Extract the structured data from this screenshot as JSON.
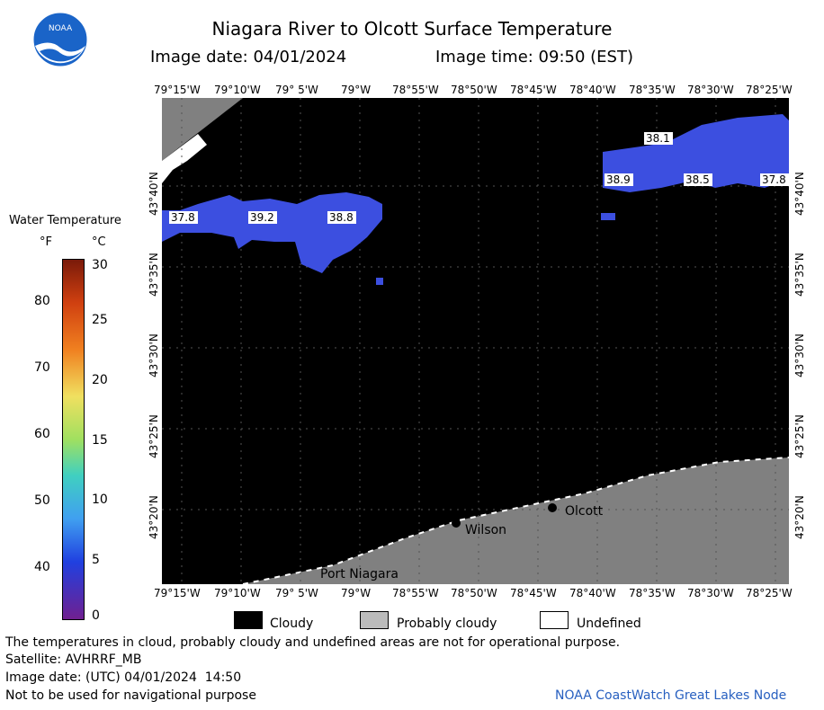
{
  "header": {
    "title": "Niagara River to Olcott Surface Temperature",
    "date_line": "Image date: 04/01/2024",
    "time_line": "Image time: 09:50 (EST)"
  },
  "logo": {
    "text": "NOAA"
  },
  "longitude_labels": [
    "79°15'W",
    "79°10'W",
    "79° 5'W",
    "79°W",
    "78°55'W",
    "78°50'W",
    "78°45'W",
    "78°40'W",
    "78°35'W",
    "78°30'W",
    "78°25'W"
  ],
  "latitude_labels": [
    "43°40'N",
    "43°35'N",
    "43°30'N",
    "43°25'N",
    "43°20'N"
  ],
  "colorbar": {
    "title": "Water Temperature",
    "unit_f": "°F",
    "unit_c": "°C",
    "f_ticks": [
      "80",
      "70",
      "60",
      "50",
      "40"
    ],
    "c_ticks": [
      "30",
      "25",
      "20",
      "15",
      "10",
      "5",
      "0"
    ]
  },
  "map": {
    "temperature_labels": [
      "37.8",
      "39.2",
      "38.8",
      "38.1",
      "38.9",
      "38.5",
      "37.8"
    ],
    "places": [
      "Olcott",
      "Wilson",
      "Port Niagara"
    ],
    "colors": {
      "cloud": "#000000",
      "probably_cloudy": "#808080",
      "water": "#3c4fe0",
      "land": "#808080"
    }
  },
  "legend": {
    "cloudy": "Cloudy",
    "probably_cloudy": "Probably cloudy",
    "undefined": "Undefined"
  },
  "footer": {
    "disclaimer": "The temperatures in cloud, probably cloudy and undefined areas are not for operational purpose.",
    "satellite": "Satellite: AVHRRF_MB",
    "utc_date": "Image date: (UTC) 04/01/2024  14:50",
    "nav_warning": "Not to be used for navigational purpose",
    "credit": "NOAA CoastWatch Great Lakes Node"
  }
}
